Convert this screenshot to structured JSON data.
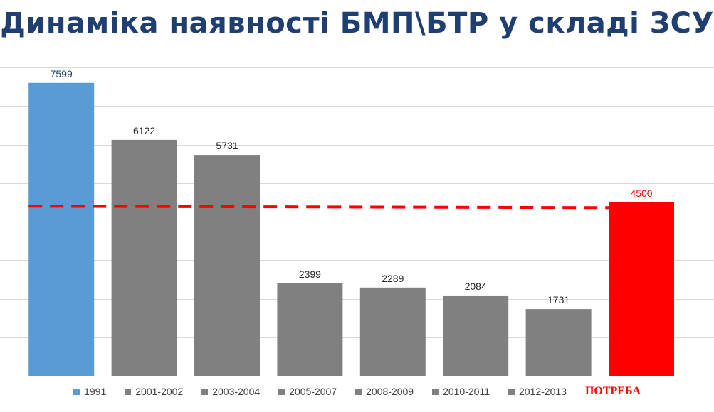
{
  "title": "Динаміка наявності БМП\\БТР у складі ЗСУ",
  "chart_data": {
    "type": "bar",
    "categories": [
      "1991",
      "2001-2002",
      "2003-2004",
      "2005-2007",
      "2008-2009",
      "2010-2011",
      "2012-2013",
      "ПОТРЕБА"
    ],
    "values": [
      7599,
      6122,
      5731,
      2399,
      2289,
      2084,
      1731,
      4500
    ],
    "colors": [
      "#5b9bd5",
      "#808080",
      "#808080",
      "#808080",
      "#808080",
      "#808080",
      "#808080",
      "#ff0000"
    ],
    "label_colors": [
      "#1f3f73",
      "#262626",
      "#262626",
      "#262626",
      "#262626",
      "#262626",
      "#262626",
      "#ff0000"
    ],
    "reference_line": {
      "value": 4400,
      "color": "#ff0000",
      "style": "dashed"
    },
    "ylim": [
      0,
      8000
    ],
    "grid": true,
    "legend_position": "bottom"
  }
}
